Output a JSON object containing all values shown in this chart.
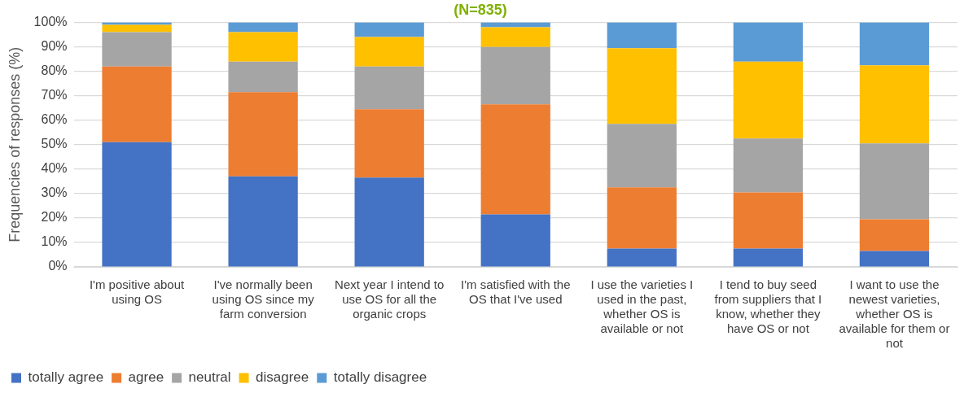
{
  "chart_data": {
    "type": "bar",
    "title": "(N=835)",
    "stacked": true,
    "ylabel": "Frequencies of responses (%)",
    "categories": [
      "I'm positive about using OS",
      "I've normally been using OS since my farm conversion",
      "Next year I intend to use OS for all the organic crops",
      "I'm satisfied with the OS that I've used",
      "I use the varieties I used in the past, whether OS is available or not",
      "I tend to buy seed from suppliers that I know, whether they have OS or not",
      "I want to use the newest varieties, whether OS is available for them or not"
    ],
    "series": [
      {
        "name": "totally agree",
        "color": "#4472c4",
        "values": [
          51,
          37,
          36.5,
          21.5,
          7.5,
          7.5,
          6.5
        ]
      },
      {
        "name": "agree",
        "color": "#ed7d31",
        "values": [
          31,
          34.5,
          28,
          45,
          25,
          23,
          13
        ]
      },
      {
        "name": "neutral",
        "color": "#a5a5a5",
        "values": [
          14,
          12.5,
          17.5,
          23.5,
          26,
          22,
          31
        ]
      },
      {
        "name": "disagree",
        "color": "#ffc000",
        "values": [
          3,
          12,
          12,
          8,
          31,
          31.5,
          32
        ]
      },
      {
        "name": "totally disagree",
        "color": "#5b9bd5",
        "values": [
          1,
          4,
          6,
          2,
          10.5,
          16,
          17.5
        ]
      }
    ],
    "ylim": [
      0,
      100
    ],
    "yticks": [
      {
        "value": 0,
        "label": "0%"
      },
      {
        "value": 10,
        "label": "10%"
      },
      {
        "value": 20,
        "label": "20%"
      },
      {
        "value": 30,
        "label": "30%"
      },
      {
        "value": 40,
        "label": "40%"
      },
      {
        "value": 50,
        "label": "50%"
      },
      {
        "value": 60,
        "label": "60%"
      },
      {
        "value": 70,
        "label": "70%"
      },
      {
        "value": 80,
        "label": "80%"
      },
      {
        "value": 90,
        "label": "90%"
      },
      {
        "value": 100,
        "label": "100%"
      }
    ],
    "grid": "y",
    "legend": "bottom"
  }
}
